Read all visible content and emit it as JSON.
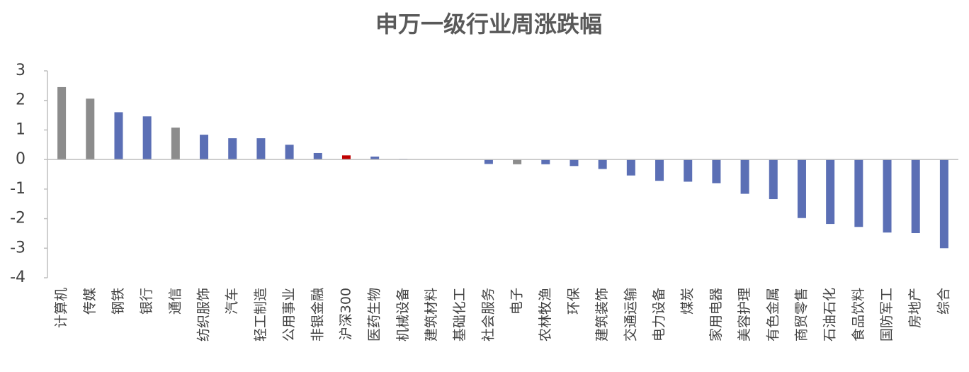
{
  "chart_data": {
    "type": "bar",
    "title": "申万一级行业周涨跌幅",
    "categories": [
      "计算机",
      "传媒",
      "钢铁",
      "银行",
      "通信",
      "纺织服饰",
      "汽车",
      "轻工制造",
      "公用事业",
      "非银金融",
      "沪深300",
      "医药生物",
      "机械设备",
      "建筑材料",
      "基础化工",
      "社会服务",
      "电子",
      "农林牧渔",
      "环保",
      "建筑装饰",
      "交通运输",
      "电力设备",
      "煤炭",
      "家用电器",
      "美容护理",
      "有色金属",
      "商贸零售",
      "石油石化",
      "食品饮料",
      "国防军工",
      "房地产",
      "综合"
    ],
    "values": [
      2.45,
      2.06,
      1.6,
      1.46,
      1.08,
      0.84,
      0.72,
      0.72,
      0.5,
      0.22,
      0.14,
      0.1,
      0.02,
      0.01,
      -0.01,
      -0.15,
      -0.16,
      -0.16,
      -0.22,
      -0.32,
      -0.54,
      -0.72,
      -0.75,
      -0.8,
      -1.16,
      -1.34,
      -1.98,
      -2.18,
      -2.28,
      -2.47,
      -2.49,
      -3.0
    ],
    "colors": [
      "#8c8c8c",
      "#8c8c8c",
      "#5b6fb5",
      "#5b6fb5",
      "#8c8c8c",
      "#5b6fb5",
      "#5b6fb5",
      "#5b6fb5",
      "#5b6fb5",
      "#5b6fb5",
      "#c00000",
      "#5b6fb5",
      "#5b6fb5",
      "#5b6fb5",
      "#5b6fb5",
      "#5b6fb5",
      "#8c8c8c",
      "#5b6fb5",
      "#5b6fb5",
      "#5b6fb5",
      "#5b6fb5",
      "#5b6fb5",
      "#5b6fb5",
      "#5b6fb5",
      "#5b6fb5",
      "#5b6fb5",
      "#5b6fb5",
      "#5b6fb5",
      "#5b6fb5",
      "#5b6fb5",
      "#5b6fb5",
      "#5b6fb5"
    ],
    "ylim": [
      -4,
      3
    ],
    "yticks": [
      -4,
      -3,
      -2,
      -1,
      0,
      1,
      2,
      3
    ],
    "grid": false
  }
}
